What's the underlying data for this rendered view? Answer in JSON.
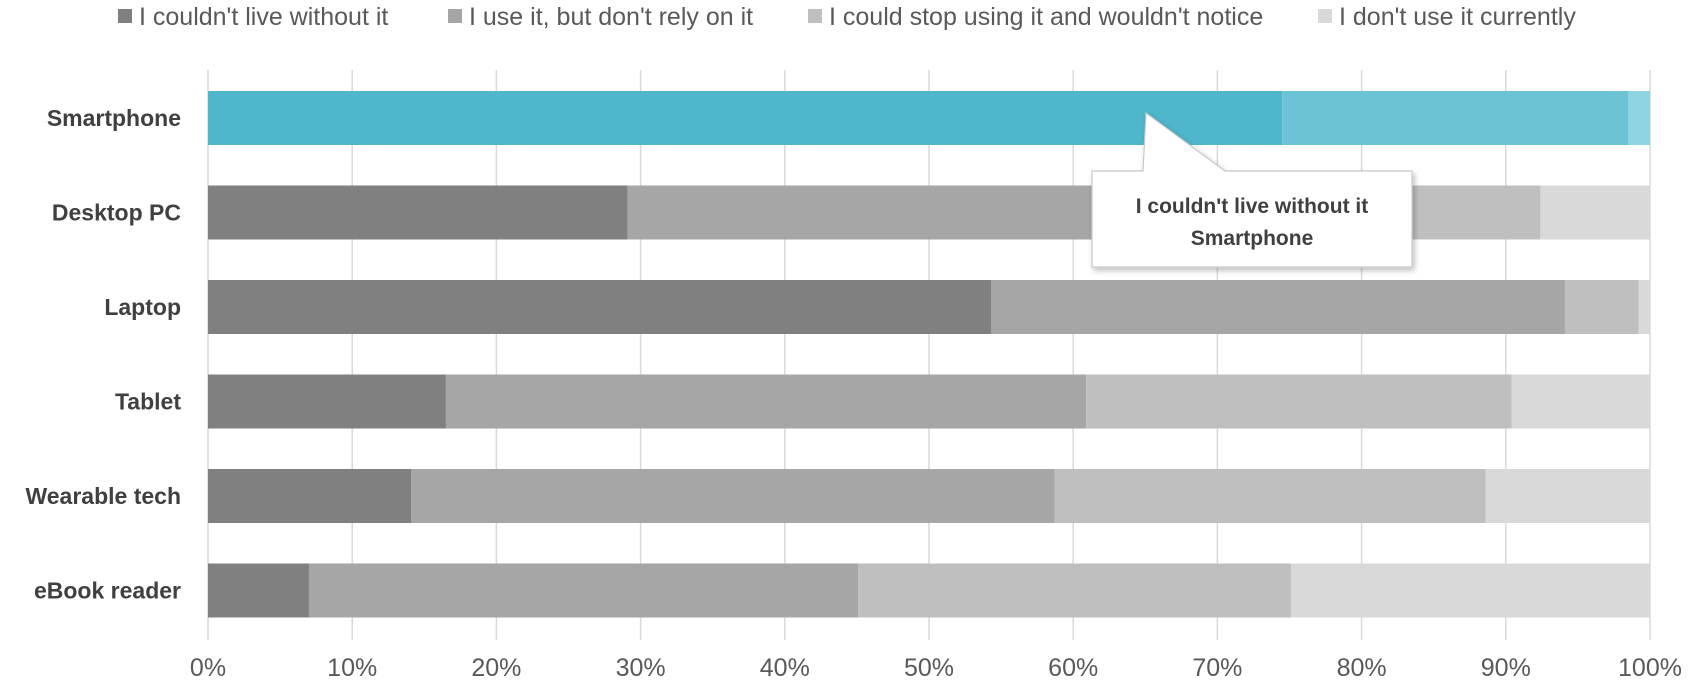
{
  "chart_data": {
    "type": "bar",
    "orientation": "horizontal",
    "stacked": "percent",
    "categories": [
      "Smartphone",
      "Desktop PC",
      "Laptop",
      "Tablet",
      "Wearable tech",
      "eBook reader"
    ],
    "series": [
      {
        "name": "I couldn't live without it",
        "values": [
          74.5,
          29.1,
          54.3,
          16.5,
          14.1,
          7.0
        ]
      },
      {
        "name": "I use it, but don't rely on it",
        "values": [
          0,
          45.5,
          39.8,
          44.4,
          44.6,
          38.1
        ]
      },
      {
        "name": "I could stop using it and wouldn't notice",
        "values": [
          24.0,
          17.8,
          5.1,
          29.5,
          29.9,
          30.0
        ]
      },
      {
        "name": "I don't use it currently",
        "values": [
          1.5,
          7.6,
          0.8,
          9.6,
          11.4,
          24.9
        ]
      }
    ],
    "xlim": [
      0,
      100
    ],
    "xticks": [
      "0%",
      "10%",
      "20%",
      "30%",
      "40%",
      "50%",
      "60%",
      "70%",
      "80%",
      "90%",
      "100%"
    ],
    "grid": "vertical",
    "legend_position": "top",
    "highlighted_category": "Smartphone",
    "tooltip": {
      "lines": [
        "I couldn't live without it",
        "Smartphone"
      ]
    }
  },
  "colors": {
    "series": [
      "#808080",
      "#a6a6a6",
      "#bfbfbf",
      "#d9d9d9"
    ],
    "highlight": [
      "#4fb6cc",
      "#4fb6cc",
      "#6cc3d6",
      "#8fd4e2"
    ],
    "grid": "#d9d9d9"
  }
}
